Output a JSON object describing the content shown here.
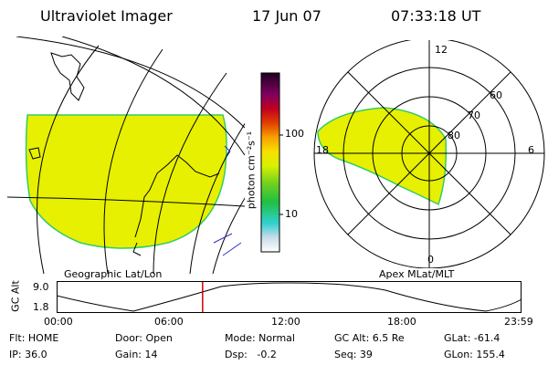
{
  "header": {
    "title": "Ultraviolet Imager",
    "date": "17 Jun 07",
    "time": "07:33:18 UT"
  },
  "left_panel": {
    "caption": "Geographic Lat/Lon"
  },
  "right_panel": {
    "caption": "Apex MLat/MLT",
    "mlt_labels": [
      "12",
      "18",
      "6",
      "0"
    ],
    "mlat_labels": [
      "60",
      "70",
      "80"
    ]
  },
  "colorbar": {
    "unit_label": "photon cm⁻²s⁻¹",
    "ticks": [
      "100",
      "10"
    ]
  },
  "altitude_plot": {
    "ylabel": "GC Alt",
    "ymax_label": "9.0",
    "ymin_label": "1.8",
    "time_labels": [
      "00:00",
      "06:00",
      "12:00",
      "18:00",
      "23:59"
    ],
    "current_time_fraction": 0.314
  },
  "status": {
    "flt": "Flt: HOME",
    "ip": "IP: 36.0",
    "door": "Door: Open",
    "gain": "Gain: 14",
    "mode": "Mode: Normal",
    "dsp": "Dsp:   -0.2",
    "gcalt": "GC Alt: 6.5 Re",
    "seq": "Seq: 39",
    "glat": "GLat: -61.4",
    "glon": "GLon: 155.4"
  },
  "colors": {
    "aurora_fill": "#e6f000",
    "aurora_edge": "#33cc66",
    "time_marker": "#cc0000"
  }
}
